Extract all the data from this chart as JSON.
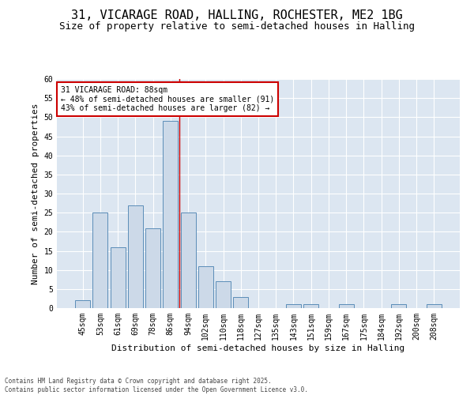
{
  "title1": "31, VICARAGE ROAD, HALLING, ROCHESTER, ME2 1BG",
  "title2": "Size of property relative to semi-detached houses in Halling",
  "xlabel": "Distribution of semi-detached houses by size in Halling",
  "ylabel": "Number of semi-detached properties",
  "footnote": "Contains HM Land Registry data © Crown copyright and database right 2025.\nContains public sector information licensed under the Open Government Licence v3.0.",
  "categories": [
    "45sqm",
    "53sqm",
    "61sqm",
    "69sqm",
    "78sqm",
    "86sqm",
    "94sqm",
    "102sqm",
    "110sqm",
    "118sqm",
    "127sqm",
    "135sqm",
    "143sqm",
    "151sqm",
    "159sqm",
    "167sqm",
    "175sqm",
    "184sqm",
    "192sqm",
    "200sqm",
    "208sqm"
  ],
  "values": [
    2,
    25,
    16,
    27,
    21,
    49,
    25,
    11,
    7,
    3,
    0,
    0,
    1,
    1,
    0,
    1,
    0,
    0,
    1,
    0,
    1
  ],
  "bar_color": "#ccd9e8",
  "bar_edge_color": "#5b8db8",
  "vline_x": 5.5,
  "vline_color": "#cc0000",
  "annotation_title": "31 VICARAGE ROAD: 88sqm",
  "annotation_line1": "← 48% of semi-detached houses are smaller (91)",
  "annotation_line2": "43% of semi-detached houses are larger (82) →",
  "annotation_box_color": "#cc0000",
  "ylim": [
    0,
    60
  ],
  "yticks": [
    0,
    5,
    10,
    15,
    20,
    25,
    30,
    35,
    40,
    45,
    50,
    55,
    60
  ],
  "background_color": "#dce6f1",
  "title_fontsize": 11,
  "subtitle_fontsize": 9,
  "axis_label_fontsize": 8,
  "tick_fontsize": 7,
  "annotation_fontsize": 7,
  "footnote_fontsize": 5.5
}
